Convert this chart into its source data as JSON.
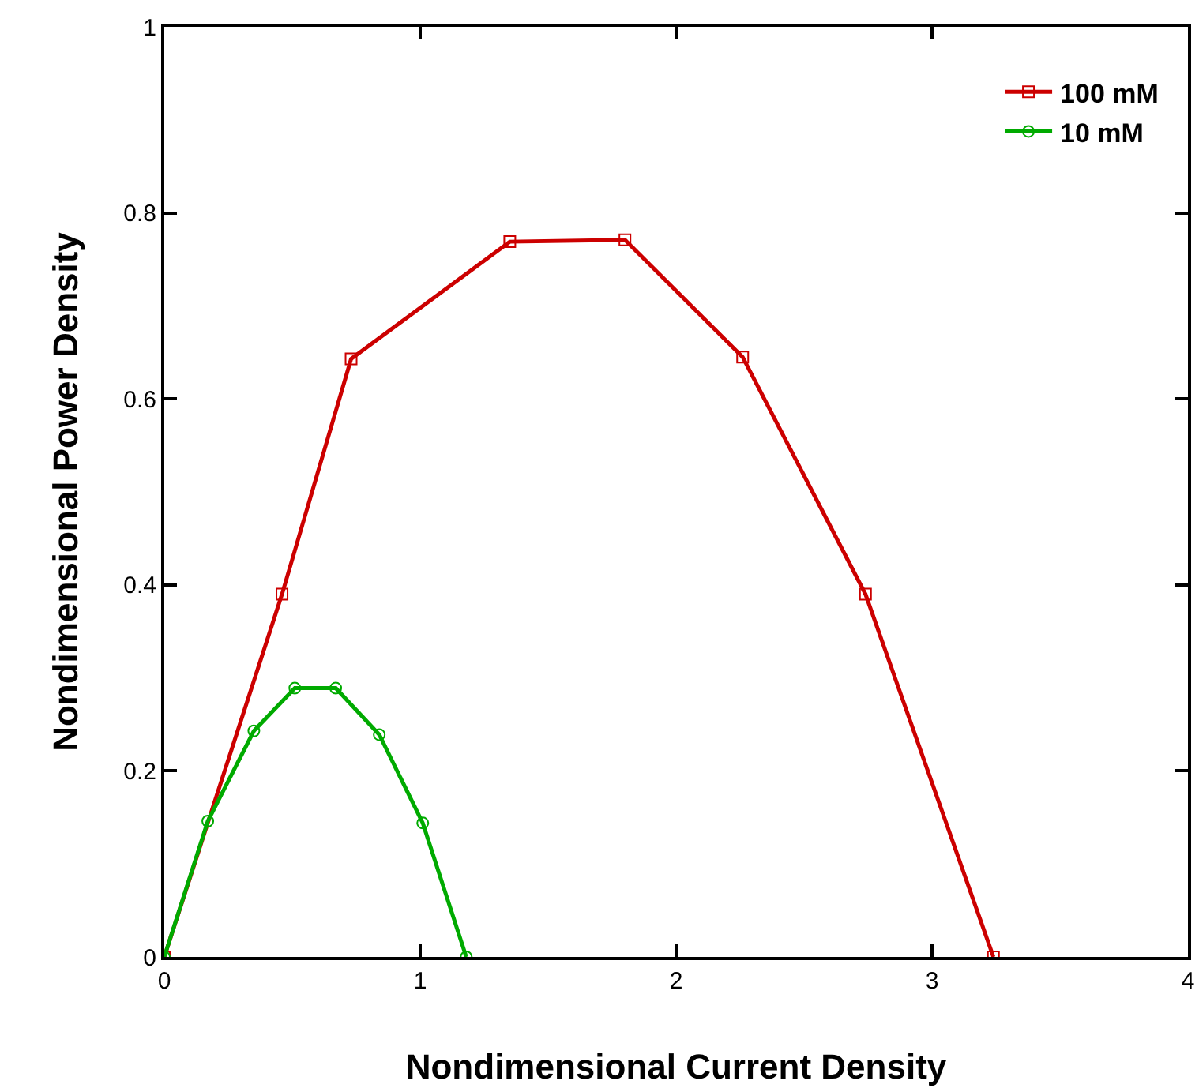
{
  "chart_data": {
    "type": "line",
    "xlabel": "Nondimensional Current Density",
    "ylabel": "Nondimensional Power Density",
    "series": [
      {
        "name": "100 mM",
        "color": "#cc0000",
        "marker": "square",
        "x": [
          0,
          0.46,
          0.73,
          1.35,
          1.8,
          2.26,
          2.74,
          3.24
        ],
        "values": [
          0,
          0.39,
          0.643,
          0.769,
          0.771,
          0.645,
          0.39,
          0
        ]
      },
      {
        "name": "10 mM",
        "color": "#00aa00",
        "marker": "circle",
        "x": [
          0,
          0.17,
          0.35,
          0.51,
          0.67,
          0.84,
          1.01,
          1.18
        ],
        "values": [
          0,
          0.146,
          0.243,
          0.289,
          0.289,
          0.239,
          0.144,
          0
        ]
      }
    ],
    "xlim": [
      0,
      4
    ],
    "ylim": [
      0,
      1
    ],
    "xticks": [
      0,
      1,
      2,
      3,
      4
    ],
    "yticks": [
      0,
      0.2,
      0.4,
      0.6,
      0.8,
      1
    ],
    "grid": false,
    "legend": "top right",
    "line_style": "solid"
  }
}
